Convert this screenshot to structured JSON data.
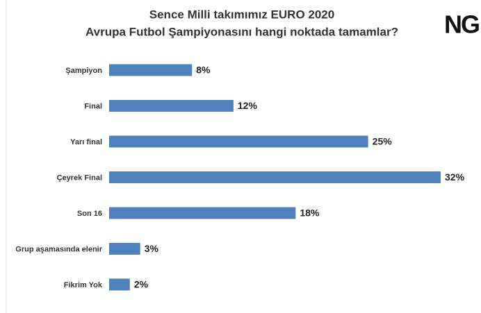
{
  "chart_data": {
    "type": "bar",
    "orientation": "horizontal",
    "title": [
      "Sence Milli takımımız EURO 2020",
      "Avrupa Futbol Şampiyonasını hangi noktada tamamlar?"
    ],
    "logo": "NG",
    "categories": [
      "Şampiyon",
      "Final",
      "Yarı final",
      "Çeyrek Final",
      "Son 16",
      "Grup aşamasında elenir",
      "Fikrim Yok"
    ],
    "values": [
      8,
      12,
      25,
      32,
      18,
      3,
      2
    ],
    "value_labels": [
      "8%",
      "12%",
      "25%",
      "32%",
      "18%",
      "3%",
      "2%"
    ],
    "color": "#4f81bd"
  }
}
